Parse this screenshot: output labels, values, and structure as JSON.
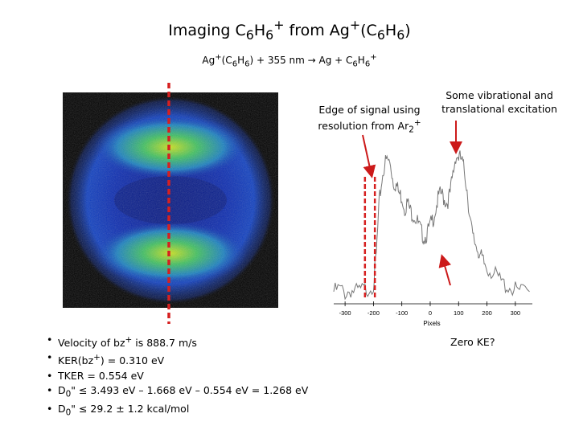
{
  "slide": {
    "title": "Imaging C6H6+ from Ag+(C6H6)",
    "reaction": "Ag+(C6H6) + 355 nm → Ag + C6H6+",
    "annotations": {
      "edge_signal": [
        "Edge of signal using",
        "resolution from Ar2+"
      ],
      "vib_excitation": [
        "Some vibrational and",
        "translational excitation"
      ],
      "zero_ke": "Zero KE?"
    },
    "bullets": [
      "Velocity of bz+ is 888.7 m/s",
      "KER(bz+) = 0.310 eV",
      "TKER = 0.554 eV",
      "D0\" ≤ 3.493 eV – 1.668 eV – 0.554 eV = 1.268 eV",
      "D0\" ≤ 29.2 ± 1.2 kcal/mol"
    ],
    "colors": {
      "cut_line": "#d62020",
      "arrow": "#cc1a1a",
      "signal_line": "#777777",
      "image_background": "#000000"
    }
  },
  "chart_data": {
    "type": "line",
    "title": "",
    "xlabel": "Pixels",
    "ylabel": "",
    "xlim": [
      -340,
      360
    ],
    "ylim": [
      0,
      1
    ],
    "xticks": [
      -300,
      -200,
      -100,
      0,
      100,
      200,
      300
    ],
    "markers": [
      -230,
      -195
    ],
    "series": [
      {
        "x": [
          -340,
          -320,
          -300,
          -280,
          -260,
          -240,
          -220,
          -200,
          -190,
          -180,
          -170,
          -160,
          -150,
          -140,
          -130,
          -120,
          -110,
          -100,
          -90,
          -80,
          -70,
          -60,
          -50,
          -40,
          -30,
          -20,
          -10,
          0,
          10,
          20,
          30,
          40,
          50,
          60,
          70,
          80,
          90,
          100,
          110,
          120,
          130,
          140,
          150,
          160,
          170,
          180,
          190,
          200,
          220,
          240,
          260,
          280,
          300,
          320,
          350
        ],
        "y": [
          0.05,
          0.07,
          0.04,
          0.06,
          0.05,
          0.06,
          0.07,
          0.1,
          0.3,
          0.65,
          0.82,
          0.93,
          0.95,
          0.92,
          0.8,
          0.78,
          0.72,
          0.7,
          0.62,
          0.66,
          0.6,
          0.58,
          0.55,
          0.5,
          0.45,
          0.42,
          0.45,
          0.5,
          0.55,
          0.62,
          0.7,
          0.72,
          0.68,
          0.66,
          0.72,
          0.85,
          0.98,
          0.97,
          0.95,
          0.88,
          0.75,
          0.55,
          0.42,
          0.38,
          0.33,
          0.28,
          0.24,
          0.22,
          0.18,
          0.14,
          0.1,
          0.08,
          0.06,
          0.05,
          0.05
        ]
      }
    ]
  }
}
